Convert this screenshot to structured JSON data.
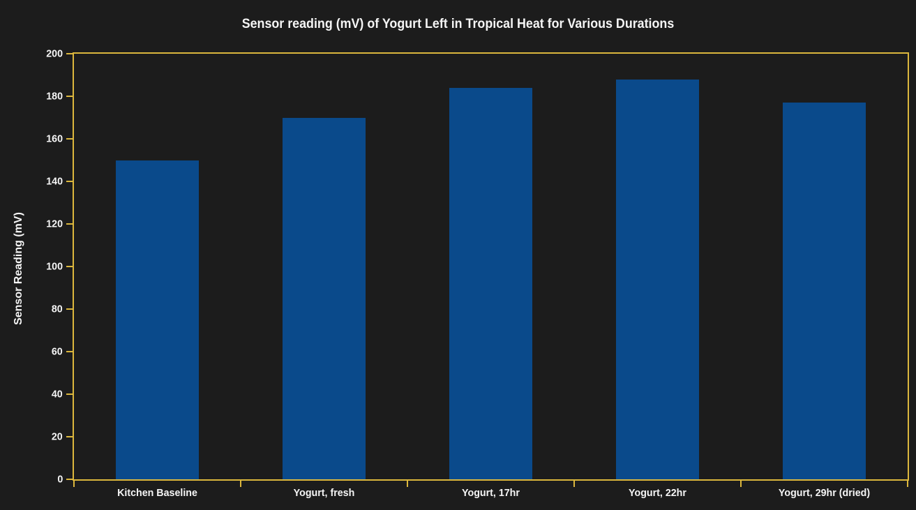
{
  "chart_data": {
    "type": "bar",
    "title": "Sensor reading (mV) of Yogurt Left in Tropical Heat for Various Durations",
    "ylabel": "Sensor Reading (mV)",
    "xlabel": "",
    "categories": [
      "Kitchen Baseline",
      "Yogurt, fresh",
      "Yogurt, 17hr",
      "Yogurt, 22hr",
      "Yogurt, 29hr (dried)"
    ],
    "values": [
      150,
      170,
      184,
      188,
      177
    ],
    "ylim": [
      0,
      200
    ],
    "yticks": [
      0,
      20,
      40,
      60,
      80,
      100,
      120,
      140,
      160,
      180,
      200
    ],
    "bar_width_fraction": 0.5,
    "grid": false,
    "legend": false,
    "colors": {
      "background": "#1c1c1c",
      "bar": "#0a4a8b",
      "axis": "#dcb73d",
      "text": "#f5f5f5"
    }
  }
}
